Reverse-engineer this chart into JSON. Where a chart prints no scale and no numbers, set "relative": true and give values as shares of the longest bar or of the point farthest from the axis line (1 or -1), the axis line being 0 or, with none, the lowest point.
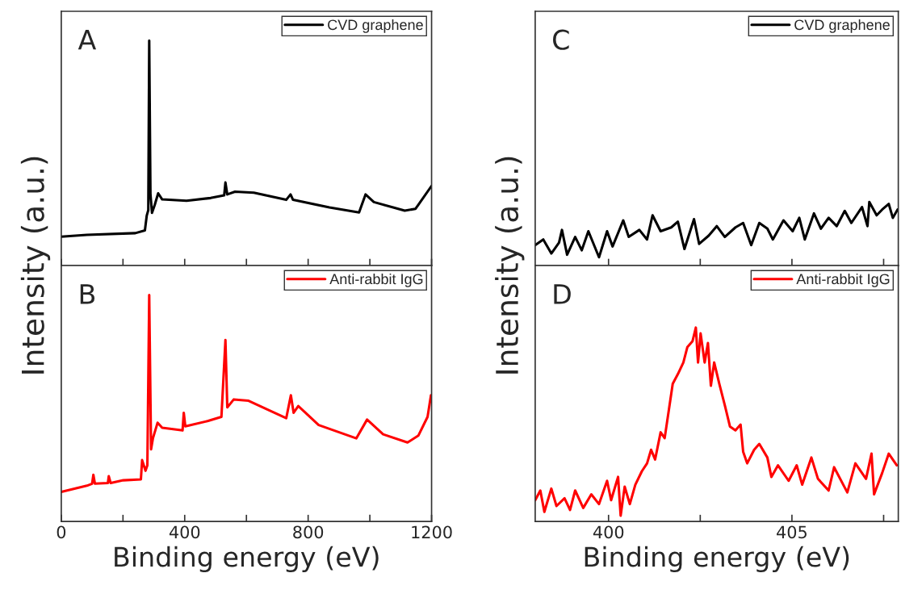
{
  "chart_data": [
    {
      "type": "line",
      "relative": true,
      "ylabel": "Intensity (a.u.)",
      "annotations": [
        "A"
      ],
      "legend": "top right",
      "tick_labels": false,
      "x": [
        0,
        83,
        240,
        271,
        277,
        282,
        285,
        289,
        294,
        303,
        314,
        327,
        406,
        484,
        528,
        532,
        538,
        563,
        624,
        729,
        743,
        751,
        869,
        965,
        986,
        1013,
        1113,
        1148,
        1200
      ],
      "xlim": [
        0,
        1200
      ],
      "xticks": [
        0,
        {
          "value": 200,
          "label": null
        },
        400,
        {
          "value": 600,
          "label": null
        },
        800,
        {
          "value": 1000,
          "label": null
        },
        1200
      ],
      "series": [
        {
          "name": "CVD graphene",
          "color": "#000000",
          "values": [
            0.128,
            0.136,
            0.144,
            0.156,
            0.222,
            0.246,
            1.0,
            0.318,
            0.234,
            0.27,
            0.321,
            0.294,
            0.288,
            0.3,
            0.312,
            0.369,
            0.316,
            0.328,
            0.324,
            0.292,
            0.316,
            0.292,
            0.258,
            0.236,
            0.316,
            0.282,
            0.244,
            0.252,
            0.354
          ]
        }
      ]
    },
    {
      "type": "line",
      "relative": true,
      "xlabel": "Binding energy (eV)",
      "annotations": [
        "B"
      ],
      "legend": "top right",
      "x": [
        0,
        83,
        100,
        104,
        109,
        151,
        154,
        160,
        201,
        258,
        262,
        273,
        279,
        285,
        291,
        297,
        312,
        327,
        393,
        397,
        402,
        476,
        519,
        532,
        538,
        559,
        607,
        729,
        744,
        753,
        768,
        834,
        956,
        991,
        1043,
        1122,
        1157,
        1187,
        1198
      ],
      "xlim": [
        0,
        1200
      ],
      "xticks": [
        0,
        {
          "value": 200,
          "label": null
        },
        400,
        {
          "value": 600,
          "label": null
        },
        800,
        {
          "value": 1000,
          "label": null
        },
        1200
      ],
      "tick_labels": "x",
      "series": [
        {
          "name": "Anti-rabbit IgG",
          "color": "#ff0000",
          "values": [
            0.131,
            0.158,
            0.167,
            0.206,
            0.167,
            0.17,
            0.2,
            0.17,
            0.182,
            0.186,
            0.271,
            0.224,
            0.248,
            1.0,
            0.319,
            0.367,
            0.436,
            0.414,
            0.402,
            0.48,
            0.42,
            0.444,
            0.462,
            0.801,
            0.504,
            0.539,
            0.533,
            0.456,
            0.557,
            0.48,
            0.51,
            0.426,
            0.367,
            0.45,
            0.385,
            0.349,
            0.379,
            0.462,
            0.557
          ]
        }
      ]
    },
    {
      "type": "line",
      "relative": true,
      "ylabel": "Intensity (a.u.)",
      "annotations": [
        "C"
      ],
      "legend": "top right",
      "tick_labels": false,
      "x": [
        398.0,
        398.22,
        398.44,
        398.65,
        398.73,
        398.87,
        399.09,
        399.27,
        399.45,
        399.74,
        399.96,
        400.11,
        400.4,
        400.55,
        400.84,
        401.05,
        401.2,
        401.42,
        401.71,
        401.89,
        402.07,
        402.33,
        402.47,
        402.73,
        402.95,
        403.17,
        403.46,
        403.67,
        403.89,
        404.11,
        404.33,
        404.48,
        404.77,
        405.02,
        405.2,
        405.35,
        405.6,
        405.79,
        406.0,
        406.22,
        406.44,
        406.62,
        406.91,
        407.06,
        407.11,
        407.31,
        407.46,
        407.64,
        407.75,
        407.88
      ],
      "xlim": [
        398,
        407.9
      ],
      "xticks": [
        400,
        {
          "value": 402.5,
          "label": null
        },
        405,
        {
          "value": 407.5,
          "label": null
        }
      ],
      "series": [
        {
          "name": "CVD graphene",
          "color": "#000000",
          "values": [
            0.32,
            0.41,
            0.19,
            0.36,
            0.56,
            0.17,
            0.45,
            0.24,
            0.54,
            0.13,
            0.54,
            0.3,
            0.71,
            0.45,
            0.56,
            0.41,
            0.79,
            0.54,
            0.6,
            0.69,
            0.26,
            0.73,
            0.34,
            0.47,
            0.62,
            0.45,
            0.6,
            0.67,
            0.32,
            0.67,
            0.58,
            0.41,
            0.71,
            0.54,
            0.75,
            0.41,
            0.82,
            0.58,
            0.75,
            0.62,
            0.86,
            0.67,
            0.92,
            0.62,
            1.0,
            0.79,
            0.88,
            0.97,
            0.75,
            0.88
          ]
        }
      ]
    },
    {
      "type": "line",
      "relative": true,
      "xlabel": "Binding energy (eV)",
      "annotations": [
        "D"
      ],
      "legend": "top right",
      "tick_labels": "x",
      "x": [
        398.0,
        398.14,
        398.25,
        398.44,
        398.58,
        398.8,
        398.95,
        399.09,
        399.31,
        399.53,
        399.74,
        399.96,
        400.07,
        400.26,
        400.33,
        400.44,
        400.58,
        400.73,
        400.91,
        401.05,
        401.16,
        401.27,
        401.42,
        401.53,
        401.64,
        401.75,
        401.89,
        402.04,
        402.15,
        402.29,
        402.38,
        402.44,
        402.51,
        402.62,
        402.71,
        402.79,
        402.88,
        403.02,
        403.17,
        403.31,
        403.46,
        403.6,
        403.67,
        403.78,
        403.97,
        404.11,
        404.33,
        404.44,
        404.62,
        404.91,
        405.13,
        405.28,
        405.53,
        405.71,
        406.0,
        406.15,
        406.51,
        406.73,
        407.02,
        407.17,
        407.24,
        407.46,
        407.64,
        407.86
      ],
      "xlim": [
        398,
        407.9
      ],
      "xticks": [
        400,
        {
          "value": 402.5,
          "label": null
        },
        405,
        {
          "value": 407.5,
          "label": null
        }
      ],
      "series": [
        {
          "name": "Anti-rabbit IgG",
          "color": "#ff0000",
          "values": [
            0.11,
            0.16,
            0.05,
            0.17,
            0.08,
            0.12,
            0.06,
            0.16,
            0.07,
            0.14,
            0.09,
            0.21,
            0.11,
            0.23,
            0.03,
            0.18,
            0.09,
            0.19,
            0.26,
            0.3,
            0.37,
            0.32,
            0.46,
            0.43,
            0.57,
            0.71,
            0.76,
            0.82,
            0.9,
            0.93,
            1.0,
            0.82,
            0.97,
            0.82,
            0.92,
            0.7,
            0.82,
            0.71,
            0.6,
            0.49,
            0.47,
            0.5,
            0.36,
            0.3,
            0.37,
            0.4,
            0.33,
            0.23,
            0.29,
            0.21,
            0.29,
            0.19,
            0.33,
            0.22,
            0.16,
            0.28,
            0.15,
            0.3,
            0.22,
            0.35,
            0.14,
            0.25,
            0.35,
            0.29
          ]
        }
      ]
    }
  ]
}
